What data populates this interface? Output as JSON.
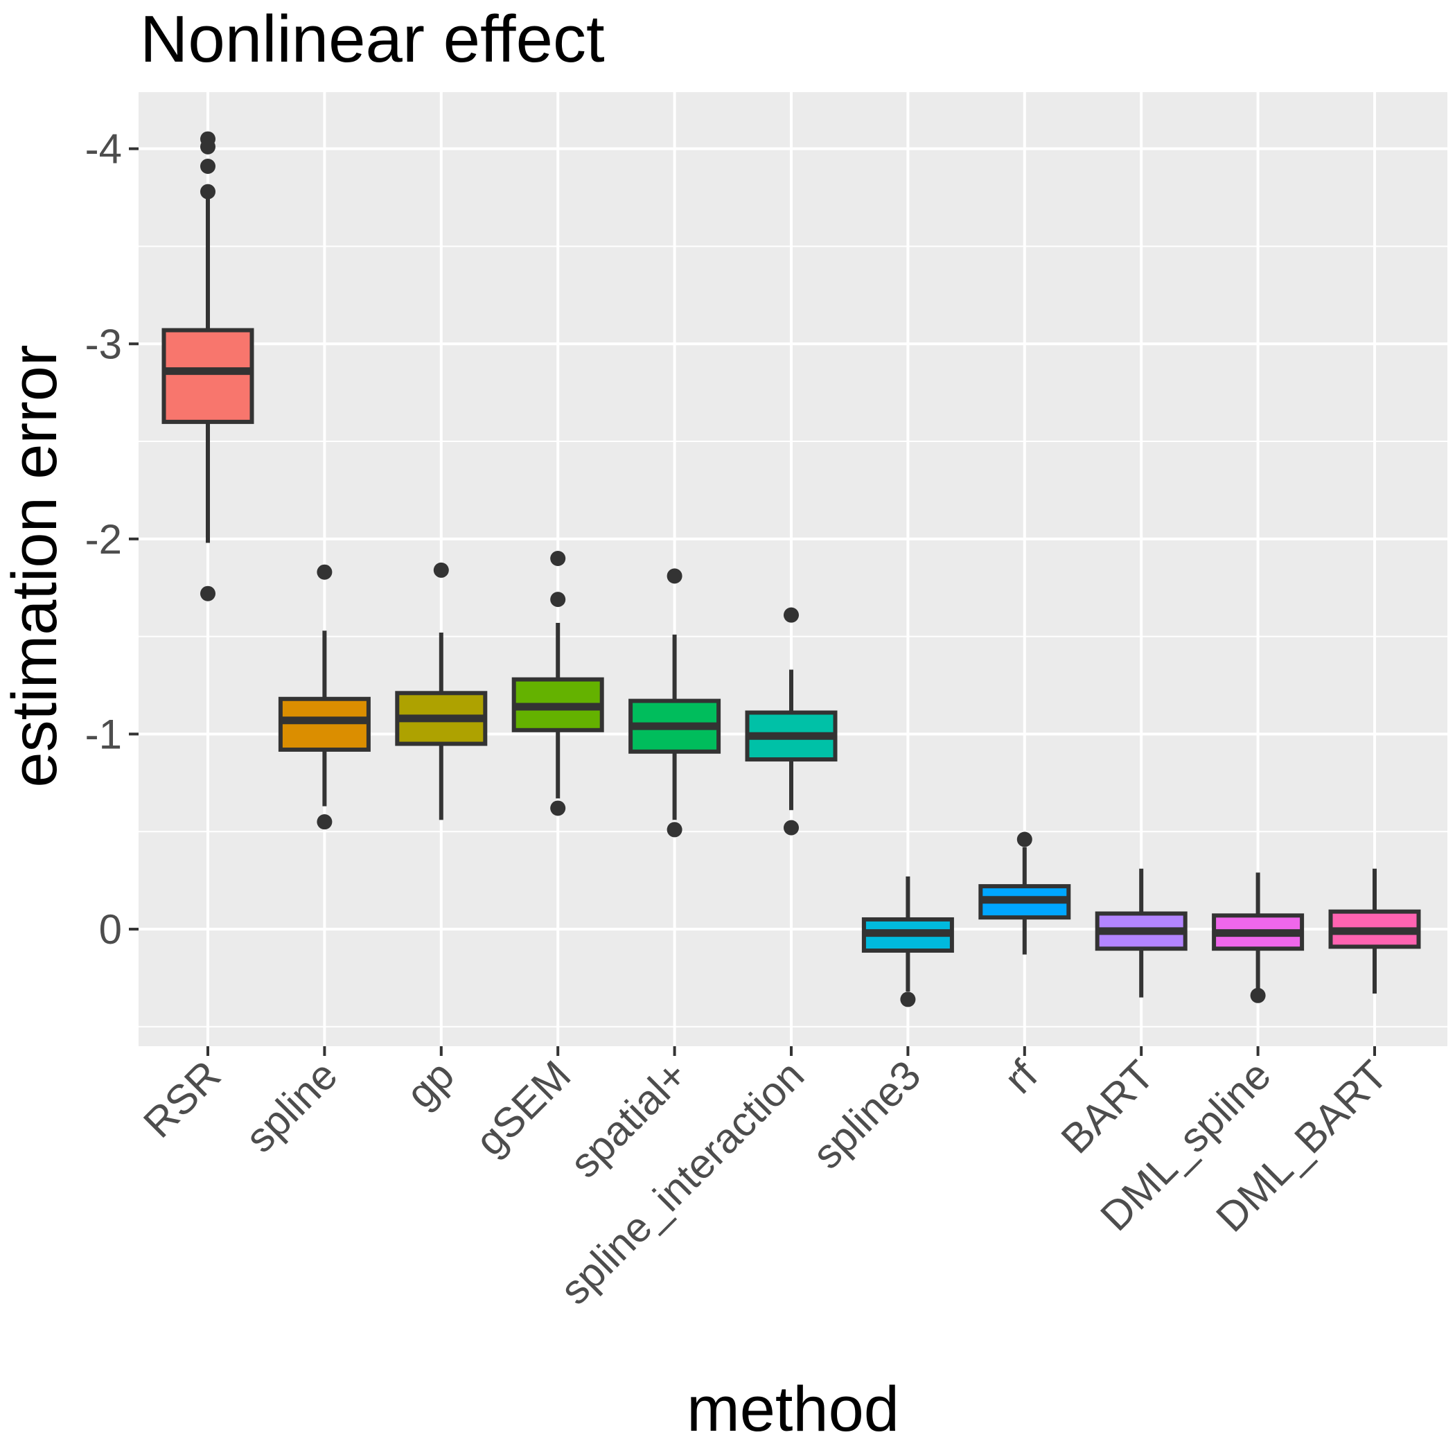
{
  "chart_data": {
    "type": "boxplot",
    "title": "Nonlinear effect",
    "xlabel": "method",
    "ylabel": "estimation error",
    "y_axis": {
      "ticks": [
        -4,
        -3,
        -2,
        -1,
        0
      ],
      "tick_labels": [
        "-4",
        "-3",
        "-2",
        "-1",
        "0"
      ],
      "minor_ticks": [
        -3.5,
        -2.5,
        -1.5,
        -0.5,
        0.5
      ],
      "domain_top": -4.29,
      "domain_bottom": 0.6,
      "reversed": true,
      "grid": true,
      "legend": "none"
    },
    "categories": [
      "RSR",
      "spline",
      "gp",
      "gSEM",
      "spatial+",
      "spline_interaction",
      "spline3",
      "rf",
      "BART",
      "DML_spline",
      "DML_BART"
    ],
    "series": [
      {
        "label": "RSR",
        "color": "#F8766D",
        "whisker_low": -3.75,
        "q1": -3.07,
        "median": -2.86,
        "q3": -2.6,
        "whisker_high": -1.98,
        "outliers": [
          -4.05,
          -4.01,
          -3.91,
          -3.78,
          -1.72
        ]
      },
      {
        "label": "spline",
        "color": "#DB8E00",
        "whisker_low": -1.53,
        "q1": -1.18,
        "median": -1.07,
        "q3": -0.92,
        "whisker_high": -0.63,
        "outliers": [
          -1.83,
          -0.55
        ]
      },
      {
        "label": "gp",
        "color": "#AEA200",
        "whisker_low": -1.52,
        "q1": -1.21,
        "median": -1.08,
        "q3": -0.95,
        "whisker_high": -0.56,
        "outliers": [
          -1.84
        ]
      },
      {
        "label": "gSEM",
        "color": "#64B200",
        "whisker_low": -1.57,
        "q1": -1.28,
        "median": -1.14,
        "q3": -1.02,
        "whisker_high": -0.67,
        "outliers": [
          -1.9,
          -1.69,
          -0.62
        ]
      },
      {
        "label": "spatial+",
        "color": "#00BD5C",
        "whisker_low": -1.51,
        "q1": -1.17,
        "median": -1.04,
        "q3": -0.91,
        "whisker_high": -0.56,
        "outliers": [
          -1.81,
          -0.51
        ]
      },
      {
        "label": "spline_interaction",
        "color": "#00C1A7",
        "whisker_low": -1.33,
        "q1": -1.11,
        "median": -0.99,
        "q3": -0.87,
        "whisker_high": -0.61,
        "outliers": [
          -1.61,
          -0.52
        ]
      },
      {
        "label": "spline3",
        "color": "#00BADE",
        "whisker_low": -0.27,
        "q1": -0.05,
        "median": 0.02,
        "q3": 0.11,
        "whisker_high": 0.32,
        "outliers": [
          0.36
        ]
      },
      {
        "label": "rf",
        "color": "#00A6FF",
        "whisker_low": -0.42,
        "q1": -0.22,
        "median": -0.15,
        "q3": -0.06,
        "whisker_high": 0.13,
        "outliers": [
          -0.46
        ]
      },
      {
        "label": "BART",
        "color": "#B385FF",
        "whisker_low": -0.31,
        "q1": -0.08,
        "median": 0.01,
        "q3": 0.1,
        "whisker_high": 0.35,
        "outliers": []
      },
      {
        "label": "DML_spline",
        "color": "#EF67EB",
        "whisker_low": -0.29,
        "q1": -0.07,
        "median": 0.02,
        "q3": 0.1,
        "whisker_high": 0.31,
        "outliers": [
          0.34
        ]
      },
      {
        "label": "DML_BART",
        "color": "#FF63B1",
        "whisker_low": -0.31,
        "q1": -0.09,
        "median": 0.01,
        "q3": 0.09,
        "whisker_high": 0.33,
        "outliers": []
      }
    ]
  },
  "colors": {
    "panel_bg": "#EBEBEB",
    "grid": "#FFFFFF",
    "box_stroke": "#333333",
    "outlier": "#333333",
    "tick_mark": "#333333",
    "tick_text": "#4D4D4D",
    "title_text": "#000000"
  }
}
